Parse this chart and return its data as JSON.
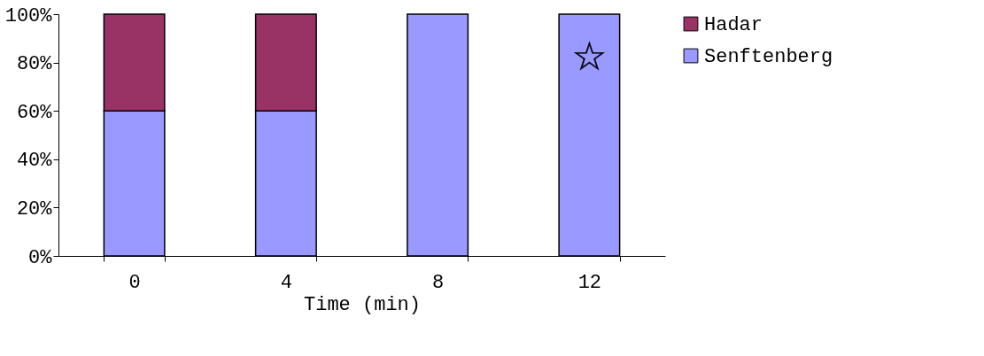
{
  "chart_data": {
    "type": "bar",
    "stacked": true,
    "xlabel": "Time (min)",
    "categories": [
      "0",
      "4",
      "8",
      "12"
    ],
    "series": [
      {
        "name": "Senftenberg",
        "color": "#9999ff",
        "values": [
          60,
          60,
          100,
          100
        ]
      },
      {
        "name": "Hadar",
        "color": "#993366",
        "values": [
          40,
          40,
          0,
          0
        ]
      }
    ],
    "ylim": [
      0,
      100
    ],
    "yticks": [
      {
        "value": 0,
        "label": "0%"
      },
      {
        "value": 20,
        "label": "20%"
      },
      {
        "value": 40,
        "label": "40%"
      },
      {
        "value": 60,
        "label": "60%"
      },
      {
        "value": 80,
        "label": "80%"
      },
      {
        "value": 100,
        "label": "100%"
      }
    ],
    "annotations": [
      "☆"
    ],
    "grid": false,
    "legend": "right"
  }
}
